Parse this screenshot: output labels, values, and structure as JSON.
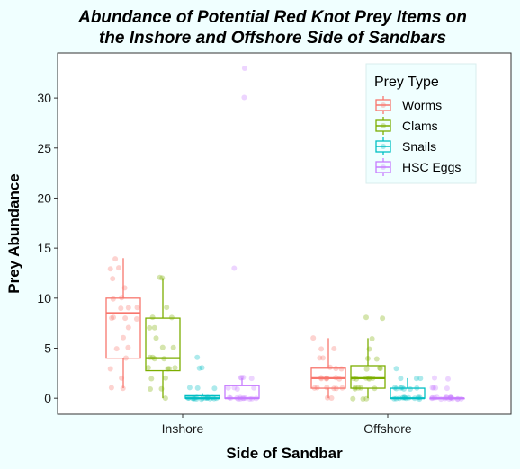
{
  "chart_data": {
    "type": "box",
    "title": "Abundance of Potential Red Knot Prey Items on",
    "subtitle": "the Inshore and Offshore Side of Sandbars",
    "xlabel": "Side of Sandbar",
    "ylabel": "Prey Abundance",
    "categories": [
      "Inshore",
      "Offshore"
    ],
    "y_ticks": [
      0,
      5,
      10,
      15,
      20,
      25,
      30
    ],
    "ylim": [
      -1.6,
      34.5
    ],
    "grid": false,
    "legend": {
      "title": "Prey Type",
      "position": "top-right"
    },
    "series": [
      {
        "name": "Worms",
        "color": "#F8766D",
        "boxes": [
          {
            "min": 1,
            "q1": 4,
            "median": 8.5,
            "q3": 10,
            "max": 14,
            "points": [
              1,
              1,
              2,
              3,
              4,
              5,
              5,
              6,
              7,
              8,
              8,
              8,
              8,
              9,
              9,
              9,
              10,
              10,
              11,
              12,
              13,
              13,
              14
            ]
          },
          {
            "min": 0,
            "q1": 1,
            "median": 2,
            "q3": 3,
            "max": 6,
            "points": [
              0,
              0,
              1,
              1,
              1,
              1,
              1,
              1,
              2,
              2,
              2,
              2,
              2,
              2,
              2,
              3,
              3,
              3,
              4,
              4,
              5,
              5,
              6
            ]
          }
        ]
      },
      {
        "name": "Clams",
        "color": "#7CAE00",
        "boxes": [
          {
            "min": 0,
            "q1": 2.75,
            "median": 4,
            "q3": 8,
            "max": 12,
            "points": [
              0,
              1,
              1,
              2,
              2,
              3,
              3,
              3,
              3,
              4,
              4,
              4,
              4,
              5,
              5,
              6,
              7,
              7,
              8,
              8,
              9,
              12,
              12
            ]
          },
          {
            "min": 0,
            "q1": 1,
            "median": 2,
            "q3": 3.25,
            "max": 6,
            "points": [
              0,
              0,
              0,
              1,
              1,
              1,
              1,
              1,
              2,
              2,
              2,
              2,
              2,
              2,
              3,
              3,
              3,
              4,
              4,
              5,
              6,
              8,
              8
            ]
          }
        ]
      },
      {
        "name": "Snails",
        "color": "#00BFC4",
        "boxes": [
          {
            "min": 0,
            "q1": 0,
            "median": 0,
            "q3": 0.25,
            "max": 0.5,
            "points": [
              0,
              0,
              0,
              0,
              0,
              0,
              0,
              0,
              0,
              0,
              0,
              0,
              0,
              0,
              0,
              0,
              0,
              1,
              1,
              1,
              3,
              3,
              4
            ]
          },
          {
            "min": 0,
            "q1": 0,
            "median": 0,
            "q3": 1,
            "max": 2,
            "points": [
              0,
              0,
              0,
              0,
              0,
              0,
              0,
              0,
              0,
              0,
              0,
              0,
              1,
              1,
              1,
              1,
              1,
              1,
              1,
              2,
              2,
              2,
              3
            ]
          }
        ]
      },
      {
        "name": "HSC Eggs",
        "color": "#C77CFF",
        "boxes": [
          {
            "min": 0,
            "q1": 0,
            "median": 0,
            "q3": 1.25,
            "max": 2,
            "points": [
              0,
              0,
              0,
              0,
              0,
              0,
              0,
              0,
              0,
              0,
              0,
              0,
              1,
              1,
              1,
              1,
              2,
              2,
              2,
              2,
              13,
              30,
              33
            ]
          },
          {
            "min": 0,
            "q1": 0,
            "median": 0,
            "q3": 0,
            "max": 0,
            "points": [
              0,
              0,
              0,
              0,
              0,
              0,
              0,
              0,
              0,
              0,
              0,
              0,
              0,
              0,
              0,
              0,
              0,
              1,
              1,
              1,
              1,
              2,
              2
            ]
          }
        ]
      }
    ]
  }
}
